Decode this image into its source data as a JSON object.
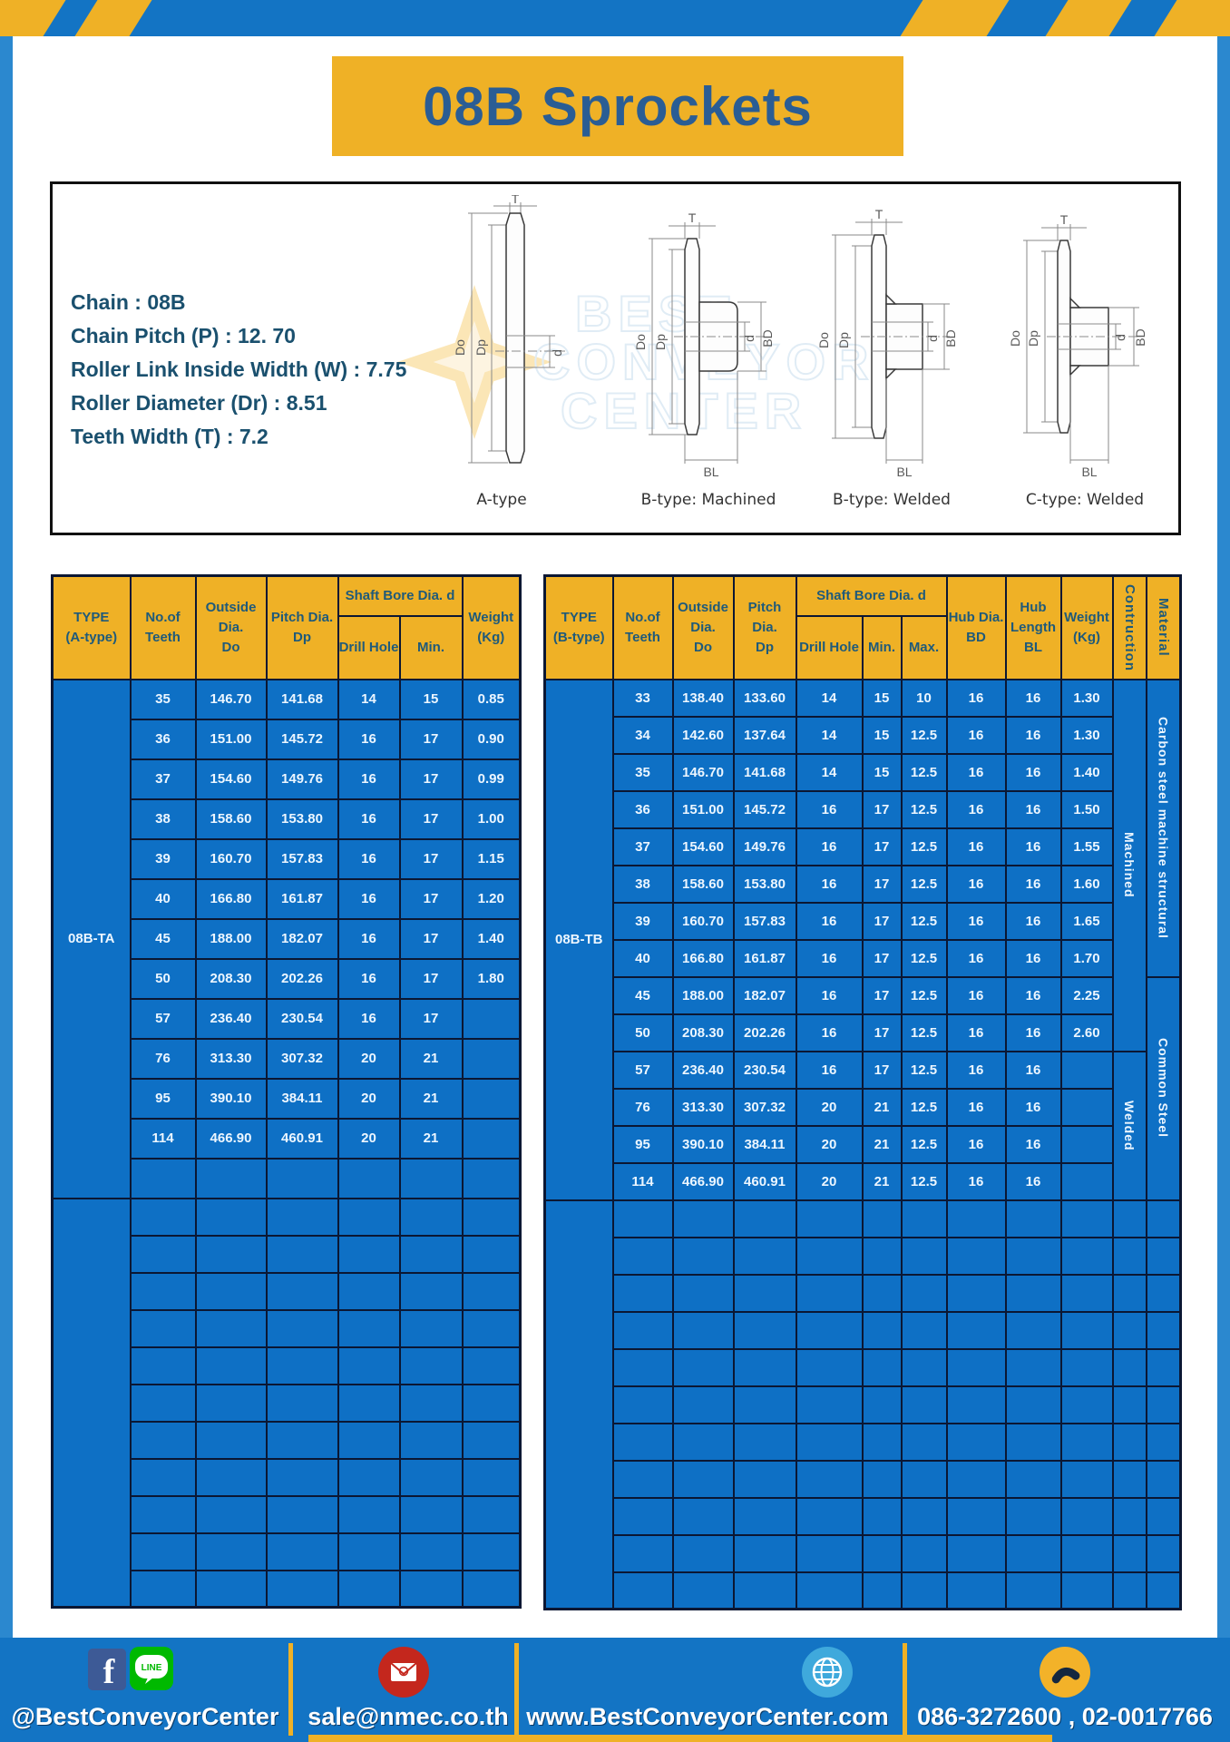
{
  "page": {
    "title": "08B Sprockets"
  },
  "colors": {
    "frame_blue": "#1374c4",
    "cell_blue": "#0e70c5",
    "gold": "#efb126",
    "border_navy": "#0b1733",
    "header_text": "#1f5a7a",
    "title_text": "#2a5d94"
  },
  "specs": {
    "lines": [
      "Chain : 08B",
      "Chain Pitch (P) : 12. 70",
      "Roller Link Inside Width (W) : 7.75",
      "Roller Diameter (Dr) : 8.51",
      "Teeth Width (T) : 7.2"
    ]
  },
  "watermark": {
    "line1": "BEST",
    "line2": "CONVEYOR",
    "line3": "CENTER"
  },
  "diagrams": {
    "labels": {
      "t": "T",
      "dout": "Do",
      "dp": "Dp",
      "d": "d",
      "bd": "BD",
      "bl": "BL"
    },
    "captions": [
      "A-type",
      "B-type: Machined",
      "B-type: Welded",
      "C-type: Welded"
    ]
  },
  "table_a": {
    "headers": {
      "type": "TYPE\n(A-type)",
      "teeth": "No.of\nTeeth",
      "outside": "Outside\nDia.\nDo",
      "pitch": "Pitch Dia.\nDp",
      "shaft_bore": "Shaft Bore Dia. d",
      "drill": "Drill Hole",
      "min": "Min.",
      "weight": "Weight\n(Kg)"
    },
    "type_label": "08B-TA",
    "rows": [
      [
        "35",
        "146.70",
        "141.68",
        "14",
        "15",
        "0.85"
      ],
      [
        "36",
        "151.00",
        "145.72",
        "16",
        "17",
        "0.90"
      ],
      [
        "37",
        "154.60",
        "149.76",
        "16",
        "17",
        "0.99"
      ],
      [
        "38",
        "158.60",
        "153.80",
        "16",
        "17",
        "1.00"
      ],
      [
        "39",
        "160.70",
        "157.83",
        "16",
        "17",
        "1.15"
      ],
      [
        "40",
        "166.80",
        "161.87",
        "16",
        "17",
        "1.20"
      ],
      [
        "45",
        "188.00",
        "182.07",
        "16",
        "17",
        "1.40"
      ],
      [
        "50",
        "208.30",
        "202.26",
        "16",
        "17",
        "1.80"
      ],
      [
        "57",
        "236.40",
        "230.54",
        "16",
        "17",
        ""
      ],
      [
        "76",
        "313.30",
        "307.32",
        "20",
        "21",
        ""
      ],
      [
        "95",
        "390.10",
        "384.11",
        "20",
        "21",
        ""
      ],
      [
        "114",
        "466.90",
        "460.91",
        "20",
        "21",
        ""
      ],
      [
        "",
        "",
        "",
        "",
        "",
        ""
      ]
    ],
    "empty_rows": 11
  },
  "table_b": {
    "headers": {
      "type": "TYPE\n(B-type)",
      "teeth": "No.of\nTeeth",
      "outside": "Outside\nDia.\nDo",
      "pitch": "Pitch Dia.\nDp",
      "shaft_bore": "Shaft Bore Dia. d",
      "drill": "Drill Hole",
      "min": "Min.",
      "max": "Max.",
      "hub_dia": "Hub Dia.\nBD",
      "hub_len": "Hub\nLength\nBL",
      "weight": "Weight\n(Kg)",
      "construction": "Contruction",
      "material": "Material"
    },
    "type_label": "08B-TB",
    "rows": [
      [
        "33",
        "138.40",
        "133.60",
        "14",
        "15",
        "10",
        "16",
        "16",
        "1.30"
      ],
      [
        "34",
        "142.60",
        "137.64",
        "14",
        "15",
        "12.5",
        "16",
        "16",
        "1.30"
      ],
      [
        "35",
        "146.70",
        "141.68",
        "14",
        "15",
        "12.5",
        "16",
        "16",
        "1.40"
      ],
      [
        "36",
        "151.00",
        "145.72",
        "16",
        "17",
        "12.5",
        "16",
        "16",
        "1.50"
      ],
      [
        "37",
        "154.60",
        "149.76",
        "16",
        "17",
        "12.5",
        "16",
        "16",
        "1.55"
      ],
      [
        "38",
        "158.60",
        "153.80",
        "16",
        "17",
        "12.5",
        "16",
        "16",
        "1.60"
      ],
      [
        "39",
        "160.70",
        "157.83",
        "16",
        "17",
        "12.5",
        "16",
        "16",
        "1.65"
      ],
      [
        "40",
        "166.80",
        "161.87",
        "16",
        "17",
        "12.5",
        "16",
        "16",
        "1.70"
      ],
      [
        "45",
        "188.00",
        "182.07",
        "16",
        "17",
        "12.5",
        "16",
        "16",
        "2.25"
      ],
      [
        "50",
        "208.30",
        "202.26",
        "16",
        "17",
        "12.5",
        "16",
        "16",
        "2.60"
      ],
      [
        "57",
        "236.40",
        "230.54",
        "16",
        "17",
        "12.5",
        "16",
        "16",
        ""
      ],
      [
        "76",
        "313.30",
        "307.32",
        "20",
        "21",
        "12.5",
        "16",
        "16",
        ""
      ],
      [
        "95",
        "390.10",
        "384.11",
        "20",
        "21",
        "12.5",
        "16",
        "16",
        ""
      ],
      [
        "114",
        "466.90",
        "460.91",
        "20",
        "21",
        "12.5",
        "16",
        "16",
        ""
      ]
    ],
    "construction_spans": [
      {
        "label": "Machined",
        "rows": 10
      },
      {
        "label": "Welded",
        "rows": 4
      }
    ],
    "material_spans": [
      {
        "label": "Carbon steel  machine structural",
        "rows": 8
      },
      {
        "label": "Common Steel",
        "rows": 6
      }
    ],
    "empty_rows": 11
  },
  "footer": {
    "social_text": "@BestConveyorCenter",
    "facebook_letter": "f",
    "line_text": "LINE",
    "email_text": "sale@nmec.co.th",
    "website_text": "www.BestConveyorCenter.com",
    "phone_text": "086-3272600 , 02-0017766"
  }
}
